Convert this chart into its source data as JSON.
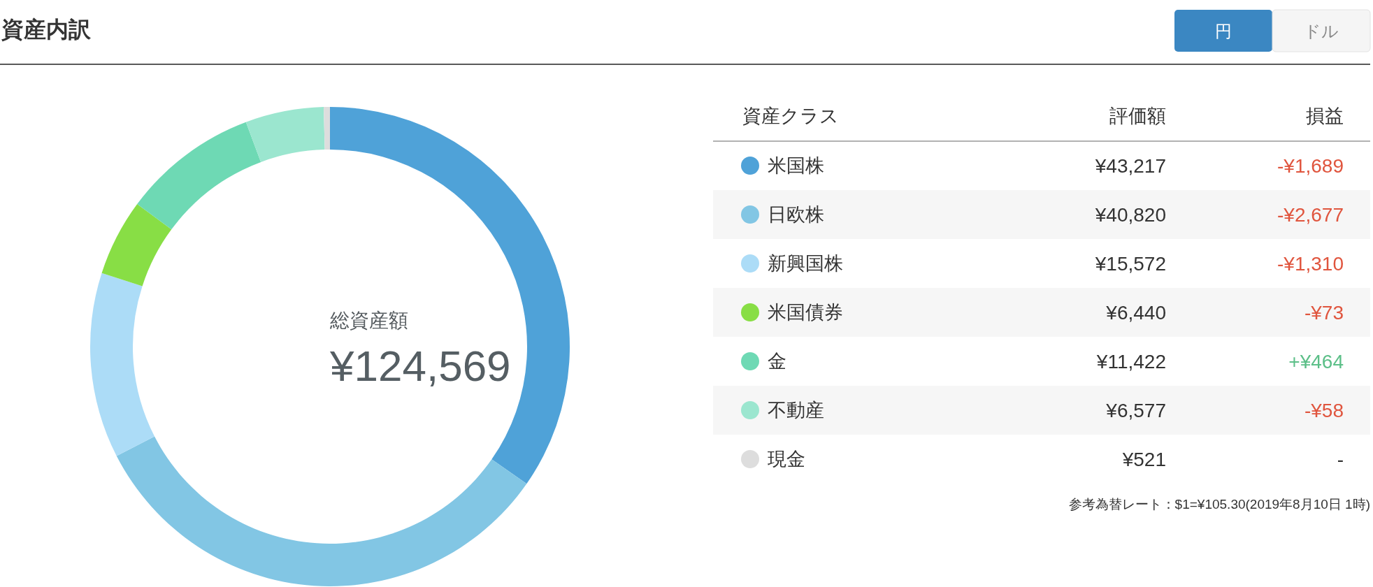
{
  "chart_data": {
    "type": "donut",
    "title": "資産内訳",
    "categories": [
      "米国株",
      "日欧株",
      "新興国株",
      "米国債券",
      "金",
      "不動産",
      "現金"
    ],
    "values": [
      43217,
      40820,
      15572,
      6440,
      11422,
      6577,
      521
    ],
    "colors": [
      "#4fa2d8",
      "#82c6e4",
      "#acdcf7",
      "#88de45",
      "#6ed9b4",
      "#9be6cf",
      "#dddddd"
    ],
    "value_labels": [
      "¥43,217",
      "¥40,820",
      "¥15,572",
      "¥6,440",
      "¥11,422",
      "¥6,577",
      "¥521"
    ],
    "legend": "right",
    "legend_title": "資産クラス",
    "annotations": [
      "総資産額",
      "¥124,569",
      "評価額",
      "損益",
      "-¥1,689",
      "-¥2,677",
      "-¥1,310",
      "-¥73",
      "+¥464",
      "-¥58",
      "-",
      "参考為替レート：$1=¥105.30(2019年8月10日 1時)",
      "円",
      "ドル"
    ]
  }
}
